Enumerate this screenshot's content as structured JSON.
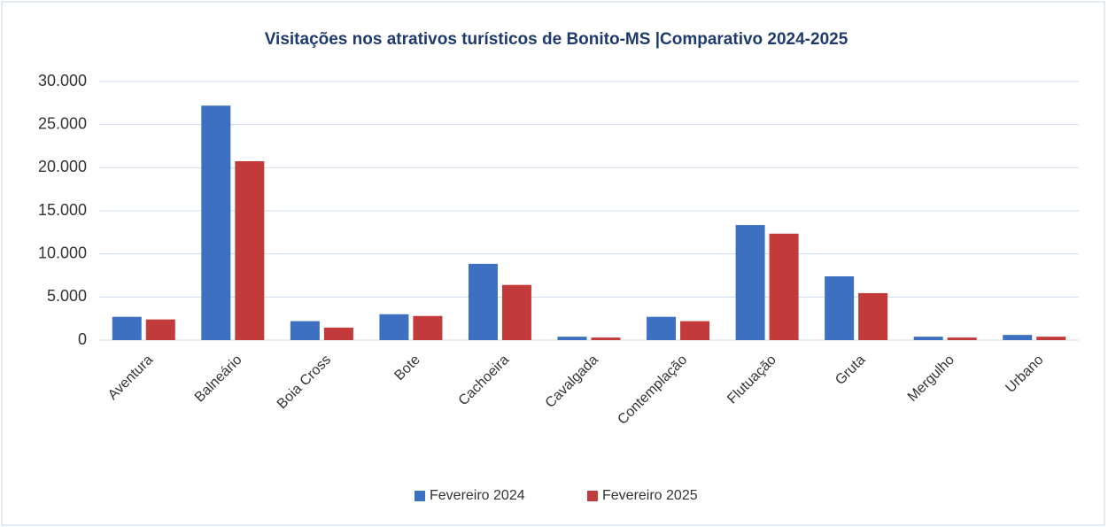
{
  "chart_data": {
    "type": "bar",
    "title": "Visitações nos atrativos turísticos de Bonito-MS |Comparativo 2024-2025",
    "categories": [
      "Aventura",
      "Balneário",
      "Boia Cross",
      "Bote",
      "Cachoeira",
      "Cavalgada",
      "Contemplação",
      "Flutuação",
      "Gruta",
      "Mergulho",
      "Urbano"
    ],
    "series": [
      {
        "name": "Fevereiro 2024",
        "color": "#3d70c0",
        "values": [
          2700,
          27200,
          2200,
          3000,
          8850,
          400,
          2700,
          13350,
          7400,
          400,
          600
        ]
      },
      {
        "name": "Fevereiro 2025",
        "color": "#c23b3a",
        "values": [
          2400,
          20750,
          1450,
          2800,
          6400,
          300,
          2200,
          12350,
          5450,
          300,
          400
        ]
      }
    ],
    "ylim": [
      0,
      30000
    ],
    "yticks": [
      0,
      {
        "value": 5000,
        "label": "5.000"
      },
      {
        "value": 10000,
        "label": "10.000"
      },
      {
        "value": 15000,
        "label": "15.000"
      },
      {
        "value": 20000,
        "label": "20.000"
      },
      {
        "value": 25000,
        "label": "25.000"
      },
      {
        "value": 30000,
        "label": "30.000"
      }
    ],
    "grid": true,
    "legend": "bottom"
  }
}
